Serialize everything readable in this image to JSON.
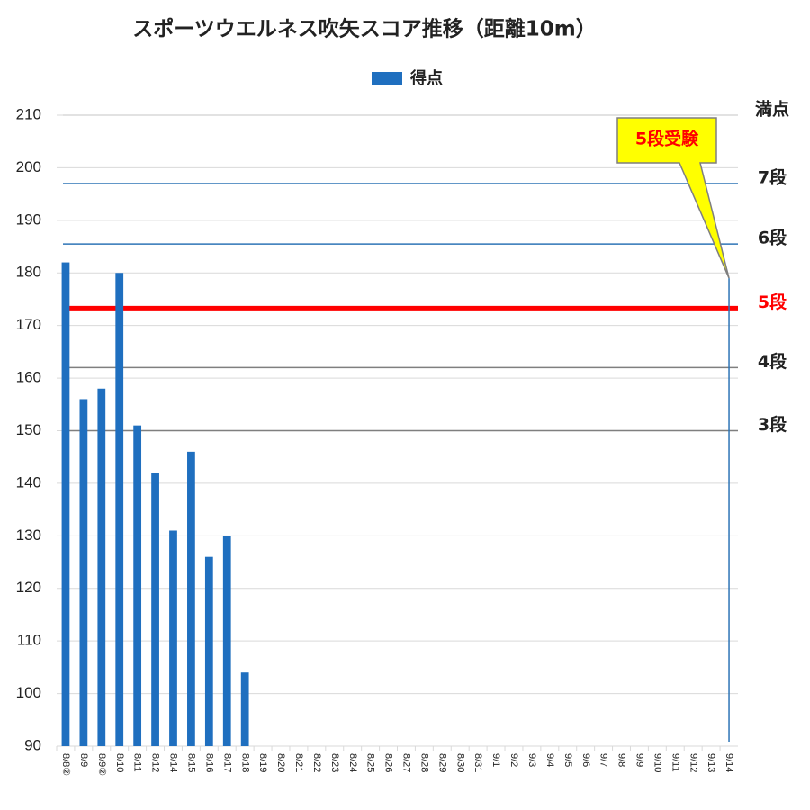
{
  "chart_data": {
    "type": "bar",
    "title": "スポーツウエルネス吹矢スコア推移（距離10m）",
    "categories": [
      "8/8②",
      "8/9",
      "8/9②",
      "8/10",
      "8/11",
      "8/12",
      "8/14",
      "8/15",
      "8/16",
      "8/17",
      "8/18",
      "8/19",
      "8/20",
      "8/21",
      "8/22",
      "8/23",
      "8/24",
      "8/25",
      "8/26",
      "8/27",
      "8/28",
      "8/29",
      "8/30",
      "8/31",
      "9/1",
      "9/2",
      "9/3",
      "9/4",
      "9/5",
      "9/6",
      "9/7",
      "9/8",
      "9/9",
      "9/10",
      "9/11",
      "9/12",
      "9/13",
      "9/14"
    ],
    "series": [
      {
        "name": "得点",
        "color": "#1f6fbf",
        "values": [
          182,
          156,
          158,
          180,
          151,
          142,
          131,
          146,
          126,
          130,
          104,
          null,
          null,
          null,
          null,
          null,
          null,
          null,
          null,
          null,
          null,
          null,
          null,
          null,
          null,
          null,
          null,
          null,
          null,
          null,
          null,
          null,
          null,
          null,
          null,
          null,
          null,
          null
        ]
      }
    ],
    "ylim": [
      90,
      210
    ],
    "yticks": [
      90,
      100,
      110,
      120,
      130,
      140,
      150,
      160,
      170,
      180,
      190,
      200,
      210
    ],
    "grid": true,
    "reference_lines": [
      {
        "label": "満点",
        "value": 210,
        "color": "#d9d9d9"
      },
      {
        "label": "7段",
        "value": 197,
        "color": "#2e75b6"
      },
      {
        "label": "6段",
        "value": 185.5,
        "color": "#2e75b6"
      },
      {
        "label": "5段",
        "value": 173.3,
        "color": "#ff0000"
      },
      {
        "label": "4段",
        "value": 162,
        "color": "#7f7f7f"
      },
      {
        "label": "3段",
        "value": 150,
        "color": "#7f7f7f"
      }
    ],
    "annotation": {
      "text": "5段受験",
      "x": "9/14",
      "y": 179
    }
  }
}
